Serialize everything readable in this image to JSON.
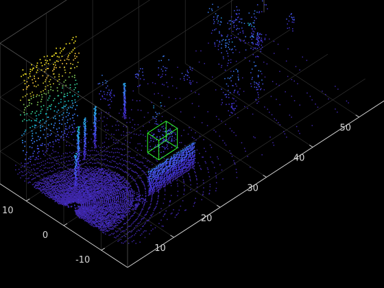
{
  "chart_data": {
    "type": "scatter",
    "title": "",
    "xlabel": "",
    "ylabel": "",
    "zlabel": "",
    "grid": true,
    "background": "#000000",
    "colormap": "parula",
    "x_ticks": [
      10,
      20,
      30,
      40,
      50
    ],
    "y_ticks": [
      10,
      0,
      -10
    ],
    "xlim": [
      0,
      57
    ],
    "ylim": [
      -17,
      17
    ],
    "zlim": [
      -3,
      10
    ],
    "bounding_box": {
      "color": "#33ff33",
      "x": [
        18.5,
        22.5
      ],
      "y": [
        -2.5,
        0.5
      ],
      "z": [
        -1.5,
        0.3
      ]
    },
    "objects": [
      {
        "kind": "ground",
        "x": [
          2,
          56
        ],
        "y": [
          -16,
          16
        ]
      },
      {
        "kind": "wall",
        "x": [
          2,
          14
        ],
        "y": [
          14,
          14
        ],
        "z": [
          -1,
          8
        ]
      },
      {
        "kind": "barrier",
        "x": [
          12,
          22
        ],
        "y": [
          -8,
          -8
        ],
        "z": [
          -1.8,
          0.5
        ]
      },
      {
        "kind": "pole",
        "x": 5,
        "y": 3,
        "z": [
          -1.8,
          1.5
        ]
      },
      {
        "kind": "pole",
        "x": 8,
        "y": 6,
        "z": [
          -1.8,
          2.5
        ]
      },
      {
        "kind": "pole",
        "x": 11,
        "y": 8,
        "z": [
          -1.8,
          2.0
        ]
      },
      {
        "kind": "pole",
        "x": 14,
        "y": 9,
        "z": [
          -1.8,
          2.0
        ]
      },
      {
        "kind": "pole",
        "x": 22,
        "y": 11,
        "z": [
          -1.8,
          1.5
        ]
      }
    ]
  }
}
